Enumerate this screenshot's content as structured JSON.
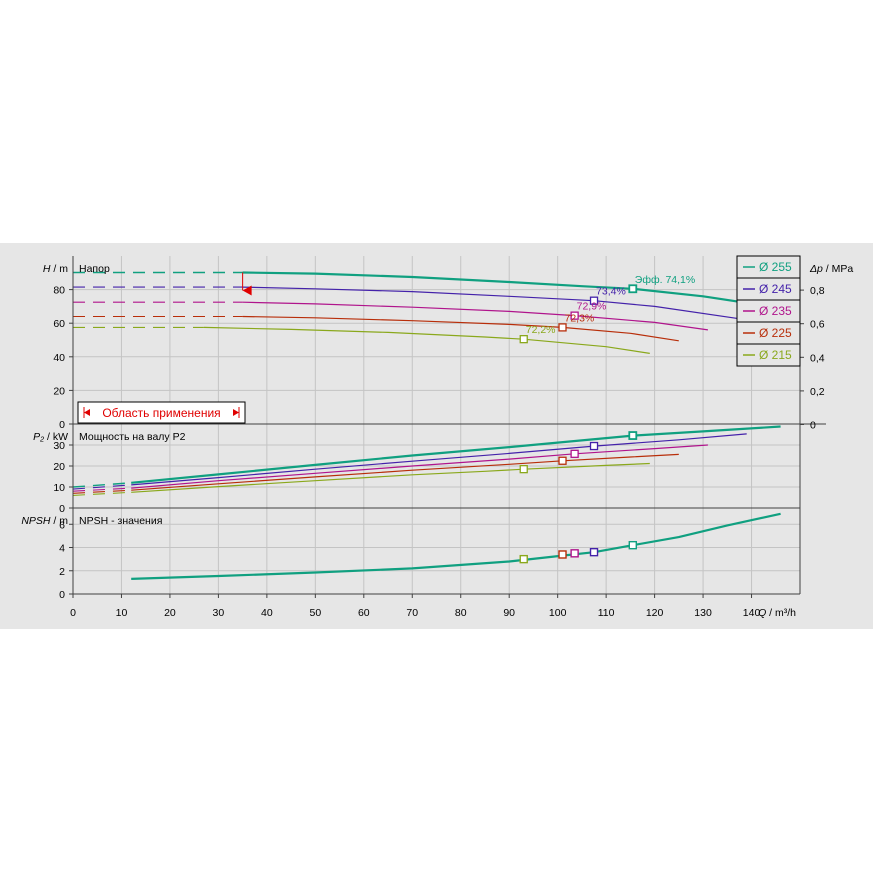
{
  "colors": {
    "d255": "#10a080",
    "d245": "#4422aa",
    "d235": "#b0148c",
    "d225": "#b82e0a",
    "d215": "#8aa81c",
    "warning": "#e00000",
    "grid": "#c4c4c4",
    "frame": "#404040"
  },
  "chart_data": {
    "type": "line",
    "x": {
      "label": "Q / m³/h",
      "label_var": "Q",
      "label_unit": "/ m³/h",
      "range": [
        0,
        150
      ],
      "ticks": [
        0,
        10,
        20,
        30,
        40,
        50,
        60,
        70,
        80,
        90,
        100,
        110,
        120,
        130,
        140
      ]
    },
    "panels": [
      {
        "id": "head",
        "title": "Напор",
        "ylabel": "H / m",
        "ylabel_var": "H",
        "ylabel_unit": "/ m",
        "ylim": [
          0,
          100
        ],
        "yticks": [
          0,
          20,
          40,
          60,
          80
        ],
        "y2label": "Δp / MPa",
        "y2label_var": "Δp",
        "y2label_unit": "/ MPa",
        "y2lim": [
          0,
          1.0
        ],
        "y2ticks": [
          "0",
          "0,2",
          "0,4",
          "0,6",
          "0,8"
        ],
        "series": [
          {
            "name": "Ø 255",
            "color": "d255",
            "bold": true,
            "dashed": [
              [
                0,
                90.2
              ],
              [
                35,
                90.2
              ]
            ],
            "points": [
              [
                35,
                90.2
              ],
              [
                50,
                89.5
              ],
              [
                70,
                87.5
              ],
              [
                90,
                84.5
              ],
              [
                105,
                82
              ],
              [
                115.5,
                80.5
              ],
              [
                130,
                76
              ],
              [
                146,
                69
              ]
            ],
            "marker": [
              115.5,
              80.5
            ],
            "marker_label": "Эфф.  74,1%"
          },
          {
            "name": "Ø 245",
            "color": "d245",
            "points": [
              [
                35,
                81.5
              ],
              [
                50,
                80.5
              ],
              [
                70,
                78.8
              ],
              [
                90,
                76
              ],
              [
                107.5,
                73.4
              ],
              [
                120,
                70
              ],
              [
                139,
                62
              ]
            ],
            "dashed": [
              [
                0,
                81.5
              ],
              [
                35,
                81.5
              ]
            ],
            "marker": [
              107.5,
              73.4
            ],
            "marker_label": "73,4%"
          },
          {
            "name": "Ø 235",
            "color": "d235",
            "points": [
              [
                35,
                72.5
              ],
              [
                50,
                71.5
              ],
              [
                70,
                69.5
              ],
              [
                90,
                67
              ],
              [
                103.5,
                64.5
              ],
              [
                120,
                60.5
              ],
              [
                131,
                56
              ]
            ],
            "dashed": [
              [
                0,
                72.5
              ],
              [
                35,
                72.5
              ]
            ],
            "marker": [
              103.5,
              64.5
            ],
            "marker_label": "72,9%"
          },
          {
            "name": "Ø 225",
            "color": "d225",
            "points": [
              [
                35,
                64
              ],
              [
                50,
                63.2
              ],
              [
                70,
                61.5
              ],
              [
                90,
                59.3
              ],
              [
                101,
                57.5
              ],
              [
                115,
                54
              ],
              [
                125,
                49.5
              ]
            ],
            "dashed": [
              [
                0,
                64
              ],
              [
                35,
                64
              ]
            ],
            "marker": [
              101,
              57.5
            ],
            "marker_label": "72,3%"
          },
          {
            "name": "Ø 215",
            "color": "d215",
            "points": [
              [
                27,
                57.5
              ],
              [
                45,
                56.3
              ],
              [
                65,
                54.5
              ],
              [
                85,
                51.8
              ],
              [
                93,
                50.5
              ],
              [
                110,
                46
              ],
              [
                119,
                42
              ]
            ],
            "dashed": [
              [
                0,
                57.5
              ],
              [
                27,
                57.5
              ]
            ],
            "marker": [
              93,
              50.5
            ],
            "marker_label": "72,2%"
          }
        ],
        "range_limits": [
          35,
          146
        ],
        "annotation": "Область применения"
      },
      {
        "id": "power",
        "title": "Мощность на валу P2",
        "ylabel": "P₂ / kW",
        "ylabel_var": "P₂",
        "ylabel_unit": "/ kW",
        "ylim": [
          0,
          40
        ],
        "yticks": [
          0,
          10,
          20,
          30
        ],
        "series": [
          {
            "name": "Ø 255",
            "color": "d255",
            "bold": true,
            "points": [
              [
                12,
                12
              ],
              [
                30,
                16
              ],
              [
                50,
                20.5
              ],
              [
                70,
                25
              ],
              [
                90,
                29
              ],
              [
                115.5,
                34.5
              ],
              [
                130,
                36.5
              ],
              [
                146,
                38.8
              ]
            ],
            "dashed": [
              [
                0,
                10
              ],
              [
                12,
                12
              ]
            ],
            "marker": [
              115.5,
              34.5
            ]
          },
          {
            "name": "Ø 245",
            "color": "d245",
            "points": [
              [
                12,
                11
              ],
              [
                30,
                14.5
              ],
              [
                50,
                18.5
              ],
              [
                70,
                22.3
              ],
              [
                90,
                26
              ],
              [
                107.5,
                29.5
              ],
              [
                125,
                32.5
              ],
              [
                139,
                35.3
              ]
            ],
            "dashed": [
              [
                0,
                9
              ],
              [
                12,
                11
              ]
            ],
            "marker": [
              107.5,
              29.5
            ]
          },
          {
            "name": "Ø 235",
            "color": "d235",
            "points": [
              [
                12,
                9.5
              ],
              [
                30,
                13
              ],
              [
                50,
                16.5
              ],
              [
                70,
                20
              ],
              [
                90,
                23.3
              ],
              [
                103.5,
                25.8
              ],
              [
                120,
                28.3
              ],
              [
                131,
                30
              ]
            ],
            "dashed": [
              [
                0,
                8
              ],
              [
                12,
                9.5
              ]
            ],
            "marker": [
              103.5,
              25.8
            ]
          },
          {
            "name": "Ø 225",
            "color": "d225",
            "points": [
              [
                12,
                8.5
              ],
              [
                30,
                11.5
              ],
              [
                50,
                14.8
              ],
              [
                70,
                18
              ],
              [
                90,
                20.8
              ],
              [
                101,
                22.5
              ],
              [
                115,
                24.3
              ],
              [
                125,
                25.5
              ]
            ],
            "dashed": [
              [
                0,
                7
              ],
              [
                12,
                8.5
              ]
            ],
            "marker": [
              101,
              22.5
            ]
          },
          {
            "name": "Ø 215",
            "color": "d215",
            "points": [
              [
                12,
                7.5
              ],
              [
                30,
                10.2
              ],
              [
                50,
                13
              ],
              [
                70,
                15.8
              ],
              [
                85,
                17.5
              ],
              [
                93,
                18.5
              ],
              [
                110,
                20.3
              ],
              [
                119,
                21.2
              ]
            ],
            "dashed": [
              [
                0,
                6
              ],
              [
                12,
                7.5
              ]
            ],
            "marker": [
              93,
              18.5
            ]
          }
        ]
      },
      {
        "id": "npsh",
        "title": "NPSH - значения",
        "ylabel": "NPSH / m",
        "ylabel_var": "NPSH",
        "ylabel_unit": "/ m",
        "ylim": [
          0,
          7.4
        ],
        "yticks": [
          0,
          2,
          4,
          6
        ],
        "series": [
          {
            "name": "Ø 255",
            "color": "d255",
            "bold": true,
            "points": [
              [
                12,
                1.3
              ],
              [
                30,
                1.55
              ],
              [
                50,
                1.85
              ],
              [
                70,
                2.2
              ],
              [
                90,
                2.8
              ],
              [
                101,
                3.3
              ],
              [
                107.5,
                3.6
              ],
              [
                115.5,
                4.2
              ],
              [
                125,
                4.9
              ],
              [
                135,
                5.9
              ],
              [
                146,
                6.9
              ]
            ]
          }
        ],
        "markers": [
          {
            "x": 93,
            "y": 3.0,
            "color": "d215"
          },
          {
            "x": 101,
            "y": 3.4,
            "color": "d225"
          },
          {
            "x": 103.5,
            "y": 3.5,
            "color": "d235"
          },
          {
            "x": 107.5,
            "y": 3.6,
            "color": "d245"
          },
          {
            "x": 115.5,
            "y": 4.2,
            "color": "d255"
          }
        ]
      }
    ],
    "legend": {
      "placement": "top-right",
      "entries": [
        {
          "label": "Ø 255",
          "color": "d255"
        },
        {
          "label": "Ø 245",
          "color": "d245"
        },
        {
          "label": "Ø 235",
          "color": "d235"
        },
        {
          "label": "Ø 225",
          "color": "d225"
        },
        {
          "label": "Ø 215",
          "color": "d215"
        }
      ]
    }
  }
}
